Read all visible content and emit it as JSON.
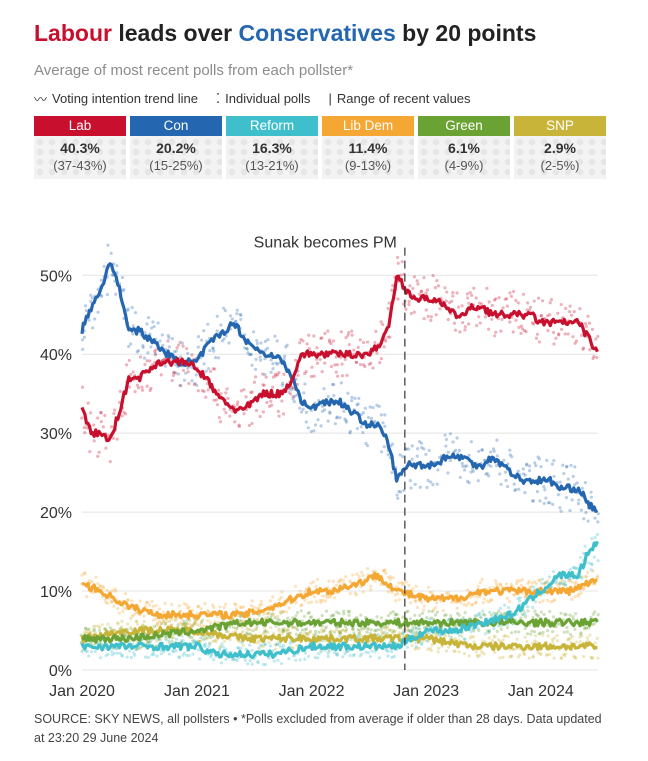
{
  "title": {
    "part_lab": "Labour",
    "part_mid": " leads over ",
    "part_con": "Conservatives",
    "part_end": " by 20 points"
  },
  "subtitle": "Average of most recent polls from each pollster*",
  "key": {
    "trend_symbol": "〰",
    "trend_label": "Voting intention trend line",
    "polls_symbol": "⁚",
    "polls_label": "Individual polls",
    "range_symbol": "|",
    "range_label": "Range of recent values"
  },
  "parties": [
    {
      "name": "Lab",
      "value": "40.3%",
      "range": "(37-43%)",
      "color": "#c8102e"
    },
    {
      "name": "Con",
      "value": "20.2%",
      "range": "(15-25%)",
      "color": "#2466b0"
    },
    {
      "name": "Reform",
      "value": "16.3%",
      "range": "(13-21%)",
      "color": "#3fbfcb"
    },
    {
      "name": "Lib Dem",
      "value": "11.4%",
      "range": "(9-13%)",
      "color": "#f5a733"
    },
    {
      "name": "Green",
      "value": "6.1%",
      "range": "(4-9%)",
      "color": "#6aa334"
    },
    {
      "name": "SNP",
      "value": "2.9%",
      "range": "(2-5%)",
      "color": "#c9b43a"
    }
  ],
  "chart_data": {
    "type": "line",
    "y_ticks": [
      0,
      10,
      20,
      30,
      40,
      50
    ],
    "y_tick_labels": [
      "0%",
      "10%",
      "20%",
      "30%",
      "40%",
      "50%"
    ],
    "ylim": [
      0,
      57
    ],
    "xlim": [
      "2020-01-01",
      "2024-07-01"
    ],
    "x_ticks": [
      "2020-01-01",
      "2021-01-01",
      "2022-01-01",
      "2023-01-01",
      "2024-01-01"
    ],
    "x_tick_labels": [
      "Jan 2020",
      "Jan 2021",
      "Jan 2022",
      "Jan 2023",
      "Jan 2024"
    ],
    "grid": true,
    "annotation": {
      "text": "Sunak becomes PM",
      "date": "2022-10-25"
    },
    "series": [
      {
        "name": "Con",
        "color": "#2466b0",
        "points": [
          [
            "2020-01-01",
            43
          ],
          [
            "2020-02-01",
            46
          ],
          [
            "2020-03-01",
            48
          ],
          [
            "2020-04-01",
            52
          ],
          [
            "2020-05-01",
            48
          ],
          [
            "2020-06-01",
            43
          ],
          [
            "2020-07-01",
            43
          ],
          [
            "2020-08-01",
            42
          ],
          [
            "2020-09-01",
            41
          ],
          [
            "2020-10-01",
            40
          ],
          [
            "2020-11-01",
            39
          ],
          [
            "2020-12-01",
            39
          ],
          [
            "2021-01-01",
            39
          ],
          [
            "2021-02-01",
            41
          ],
          [
            "2021-03-01",
            42
          ],
          [
            "2021-04-01",
            43
          ],
          [
            "2021-05-01",
            44
          ],
          [
            "2021-06-01",
            42
          ],
          [
            "2021-07-01",
            41
          ],
          [
            "2021-08-01",
            40
          ],
          [
            "2021-09-01",
            40
          ],
          [
            "2021-10-01",
            39
          ],
          [
            "2021-11-01",
            37
          ],
          [
            "2021-12-01",
            34
          ],
          [
            "2022-01-01",
            33
          ],
          [
            "2022-02-01",
            34
          ],
          [
            "2022-03-01",
            34
          ],
          [
            "2022-04-01",
            34
          ],
          [
            "2022-05-01",
            33
          ],
          [
            "2022-06-01",
            32
          ],
          [
            "2022-07-01",
            31
          ],
          [
            "2022-08-01",
            31
          ],
          [
            "2022-09-01",
            29
          ],
          [
            "2022-10-01",
            24
          ],
          [
            "2022-11-01",
            26
          ],
          [
            "2022-12-01",
            26
          ],
          [
            "2023-01-01",
            26
          ],
          [
            "2023-02-01",
            26
          ],
          [
            "2023-03-01",
            27
          ],
          [
            "2023-04-01",
            27
          ],
          [
            "2023-05-01",
            27
          ],
          [
            "2023-06-01",
            26
          ],
          [
            "2023-07-01",
            26
          ],
          [
            "2023-08-01",
            27
          ],
          [
            "2023-09-01",
            26
          ],
          [
            "2023-10-01",
            25
          ],
          [
            "2023-11-01",
            24
          ],
          [
            "2023-12-01",
            24
          ],
          [
            "2024-01-01",
            24
          ],
          [
            "2024-02-01",
            24
          ],
          [
            "2024-03-01",
            23
          ],
          [
            "2024-04-01",
            23
          ],
          [
            "2024-05-01",
            23
          ],
          [
            "2024-06-01",
            21
          ],
          [
            "2024-06-29",
            20.2
          ]
        ]
      },
      {
        "name": "Lab",
        "color": "#c8102e",
        "points": [
          [
            "2020-01-01",
            33
          ],
          [
            "2020-02-01",
            30
          ],
          [
            "2020-03-01",
            30
          ],
          [
            "2020-04-01",
            29
          ],
          [
            "2020-05-01",
            33
          ],
          [
            "2020-06-01",
            37
          ],
          [
            "2020-07-01",
            37
          ],
          [
            "2020-08-01",
            38
          ],
          [
            "2020-09-01",
            39
          ],
          [
            "2020-10-01",
            39
          ],
          [
            "2020-11-01",
            39
          ],
          [
            "2020-12-01",
            39
          ],
          [
            "2021-01-01",
            38
          ],
          [
            "2021-02-01",
            37
          ],
          [
            "2021-03-01",
            35
          ],
          [
            "2021-04-01",
            34
          ],
          [
            "2021-05-01",
            33
          ],
          [
            "2021-06-01",
            33
          ],
          [
            "2021-07-01",
            34
          ],
          [
            "2021-08-01",
            35
          ],
          [
            "2021-09-01",
            35
          ],
          [
            "2021-10-01",
            35
          ],
          [
            "2021-11-01",
            37
          ],
          [
            "2021-12-01",
            40
          ],
          [
            "2022-01-01",
            40
          ],
          [
            "2022-02-01",
            40
          ],
          [
            "2022-03-01",
            40
          ],
          [
            "2022-04-01",
            40
          ],
          [
            "2022-05-01",
            40
          ],
          [
            "2022-06-01",
            40
          ],
          [
            "2022-07-01",
            40
          ],
          [
            "2022-08-01",
            41
          ],
          [
            "2022-09-01",
            43
          ],
          [
            "2022-10-01",
            50
          ],
          [
            "2022-11-01",
            48
          ],
          [
            "2022-12-01",
            47
          ],
          [
            "2023-01-01",
            47
          ],
          [
            "2023-02-01",
            47
          ],
          [
            "2023-03-01",
            46
          ],
          [
            "2023-04-01",
            45
          ],
          [
            "2023-05-01",
            45
          ],
          [
            "2023-06-01",
            46
          ],
          [
            "2023-07-01",
            46
          ],
          [
            "2023-08-01",
            45
          ],
          [
            "2023-09-01",
            45
          ],
          [
            "2023-10-01",
            45
          ],
          [
            "2023-11-01",
            45
          ],
          [
            "2023-12-01",
            45
          ],
          [
            "2024-01-01",
            44
          ],
          [
            "2024-02-01",
            44
          ],
          [
            "2024-03-01",
            44
          ],
          [
            "2024-04-01",
            44
          ],
          [
            "2024-05-01",
            44
          ],
          [
            "2024-06-01",
            42
          ],
          [
            "2024-06-29",
            40.3
          ]
        ]
      },
      {
        "name": "Reform",
        "color": "#3fbfcb",
        "points": [
          [
            "2020-01-01",
            3
          ],
          [
            "2020-06-01",
            3
          ],
          [
            "2021-01-01",
            3
          ],
          [
            "2021-03-01",
            2
          ],
          [
            "2021-06-01",
            2
          ],
          [
            "2021-09-01",
            2
          ],
          [
            "2022-01-01",
            3
          ],
          [
            "2022-06-01",
            3
          ],
          [
            "2022-10-01",
            3
          ],
          [
            "2023-01-01",
            5
          ],
          [
            "2023-04-01",
            5
          ],
          [
            "2023-07-01",
            6
          ],
          [
            "2023-10-01",
            7
          ],
          [
            "2024-01-01",
            10
          ],
          [
            "2024-02-01",
            11
          ],
          [
            "2024-03-01",
            12
          ],
          [
            "2024-04-01",
            12
          ],
          [
            "2024-05-01",
            12
          ],
          [
            "2024-06-01",
            15
          ],
          [
            "2024-06-29",
            16.3
          ]
        ]
      },
      {
        "name": "Lib Dem",
        "color": "#f5a733",
        "points": [
          [
            "2020-01-01",
            11
          ],
          [
            "2020-03-01",
            10
          ],
          [
            "2020-06-01",
            8
          ],
          [
            "2020-09-01",
            7
          ],
          [
            "2021-01-01",
            7
          ],
          [
            "2021-06-01",
            7
          ],
          [
            "2021-09-01",
            8
          ],
          [
            "2022-01-01",
            10
          ],
          [
            "2022-03-01",
            10
          ],
          [
            "2022-06-01",
            11
          ],
          [
            "2022-08-01",
            12
          ],
          [
            "2022-10-01",
            10
          ],
          [
            "2023-01-01",
            9
          ],
          [
            "2023-04-01",
            9
          ],
          [
            "2023-07-01",
            10
          ],
          [
            "2023-10-01",
            10
          ],
          [
            "2024-01-01",
            10
          ],
          [
            "2024-04-01",
            10
          ],
          [
            "2024-06-01",
            11
          ],
          [
            "2024-06-29",
            11.4
          ]
        ]
      },
      {
        "name": "Green",
        "color": "#6aa334",
        "points": [
          [
            "2020-01-01",
            4
          ],
          [
            "2020-06-01",
            4
          ],
          [
            "2021-01-01",
            5
          ],
          [
            "2021-06-01",
            6
          ],
          [
            "2021-09-01",
            6
          ],
          [
            "2022-01-01",
            6
          ],
          [
            "2022-06-01",
            6
          ],
          [
            "2022-10-01",
            6
          ],
          [
            "2023-01-01",
            6
          ],
          [
            "2023-06-01",
            6
          ],
          [
            "2024-01-01",
            6
          ],
          [
            "2024-06-01",
            6
          ],
          [
            "2024-06-29",
            6.1
          ]
        ]
      },
      {
        "name": "SNP",
        "color": "#c9b43a",
        "points": [
          [
            "2020-01-01",
            4
          ],
          [
            "2020-06-01",
            5
          ],
          [
            "2021-01-01",
            5
          ],
          [
            "2021-06-01",
            4
          ],
          [
            "2022-01-01",
            4
          ],
          [
            "2022-06-01",
            4
          ],
          [
            "2023-01-01",
            4
          ],
          [
            "2023-06-01",
            3
          ],
          [
            "2024-01-01",
            3
          ],
          [
            "2024-06-01",
            3
          ],
          [
            "2024-06-29",
            2.9
          ]
        ]
      }
    ]
  },
  "source": "SOURCE: SKY NEWS, all pollsters • *Polls excluded from average if older than 28 days. Data updated at 23:20 29 June 2024"
}
